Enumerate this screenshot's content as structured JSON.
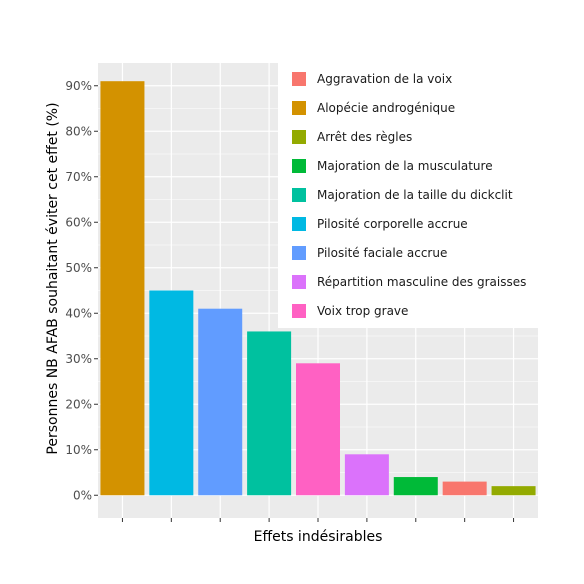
{
  "chart_data": {
    "type": "bar",
    "xlabel": "Effets indésirables",
    "ylabel": "Personnes NB AFAB souhaitant éviter cet effet (%)",
    "ylim": [
      -5,
      95
    ],
    "yticks": [
      0,
      10,
      20,
      30,
      40,
      50,
      60,
      70,
      80,
      90
    ],
    "ytick_labels": [
      "0%",
      "10%",
      "20%",
      "30%",
      "40%",
      "50%",
      "60%",
      "70%",
      "80%",
      "90%"
    ],
    "x_tick_labels_visible": false,
    "grid": true,
    "legend_position": "top-right",
    "series": [
      {
        "name": "Alopécie androgénique",
        "value": 91,
        "color": "#D39200"
      },
      {
        "name": "Pilosité corporelle accrue",
        "value": 45,
        "color": "#00B9E3"
      },
      {
        "name": "Pilosité faciale accrue",
        "value": 41,
        "color": "#619CFF"
      },
      {
        "name": "Majoration de la taille du dickclit",
        "value": 36,
        "color": "#00C19F"
      },
      {
        "name": "Voix trop grave",
        "value": 29,
        "color": "#FF61C3"
      },
      {
        "name": "Répartition masculine des graisses",
        "value": 9,
        "color": "#DB72FB"
      },
      {
        "name": "Majoration de la musculature",
        "value": 4,
        "color": "#00BA38"
      },
      {
        "name": "Aggravation de la voix",
        "value": 3,
        "color": "#F8766D"
      },
      {
        "name": "Arrêt des règles",
        "value": 2,
        "color": "#93AA00"
      }
    ],
    "legend": [
      {
        "label": "Aggravation de la voix",
        "color": "#F8766D"
      },
      {
        "label": "Alopécie androgénique",
        "color": "#D39200"
      },
      {
        "label": "Arrêt des règles",
        "color": "#93AA00"
      },
      {
        "label": "Majoration de la musculature",
        "color": "#00BA38"
      },
      {
        "label": "Majoration de la taille du dickclit",
        "color": "#00C19F"
      },
      {
        "label": "Pilosité corporelle accrue",
        "color": "#00B9E3"
      },
      {
        "label": "Pilosité faciale accrue",
        "color": "#619CFF"
      },
      {
        "label": "Répartition masculine des graisses",
        "color": "#DB72FB"
      },
      {
        "label": "Voix trop grave",
        "color": "#FF61C3"
      }
    ]
  }
}
